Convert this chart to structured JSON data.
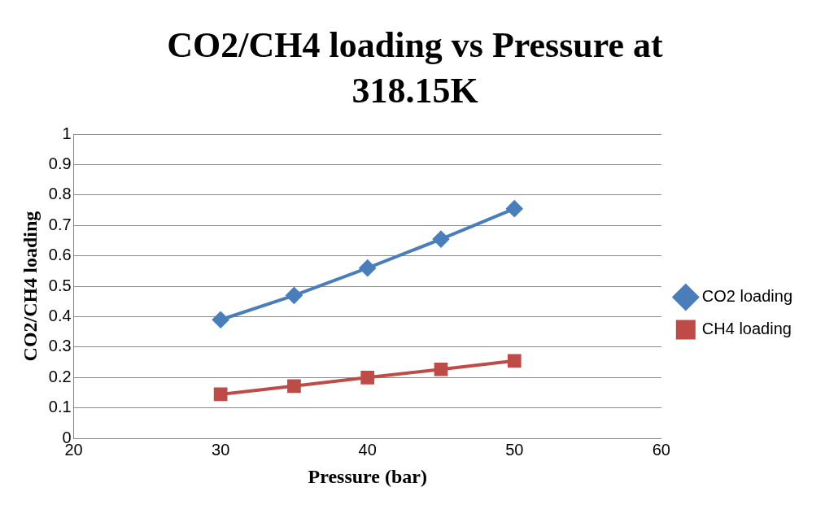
{
  "chart_data": {
    "type": "line",
    "title": "CO2/CH4 loading vs Pressure at 318.15K",
    "xlabel": "Pressure (bar)",
    "ylabel": "CO2/CH4 loading",
    "x": [
      30,
      35,
      40,
      45,
      50
    ],
    "series": [
      {
        "name": "CO2 loading",
        "color": "#4a7ebb",
        "marker": "diamond",
        "values": [
          0.39,
          0.47,
          0.56,
          0.655,
          0.755
        ]
      },
      {
        "name": "CH4 loading",
        "color": "#be4b48",
        "marker": "square",
        "values": [
          0.145,
          0.172,
          0.2,
          0.227,
          0.255
        ]
      }
    ],
    "xlim": [
      20,
      60
    ],
    "xticks": [
      20,
      30,
      40,
      50,
      60
    ],
    "ylim": [
      0,
      1
    ],
    "yticks": [
      0,
      0.1,
      0.2,
      0.3,
      0.4,
      0.5,
      0.6,
      0.7,
      0.8,
      0.9,
      1
    ],
    "grid": "y",
    "legend": "right",
    "line_style": "solid"
  }
}
